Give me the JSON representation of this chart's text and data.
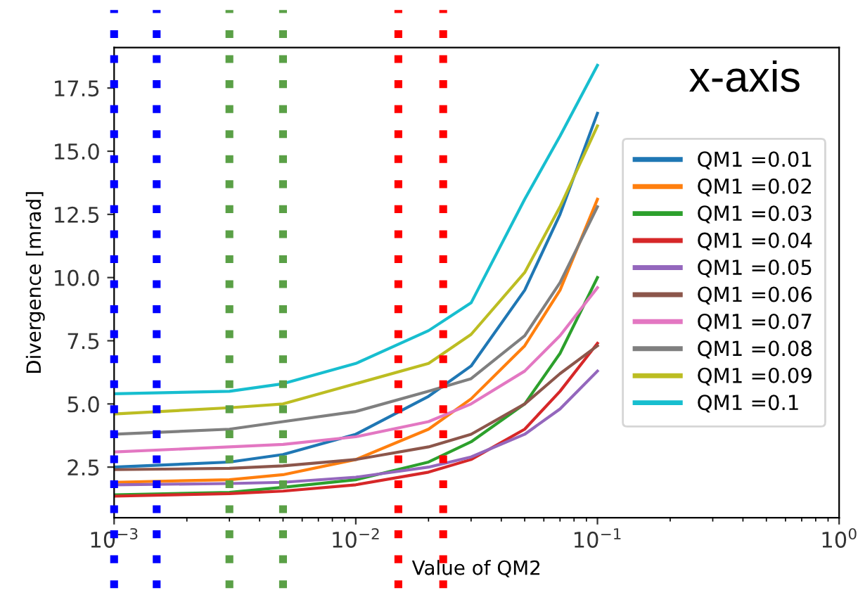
{
  "chart_data": {
    "type": "line",
    "xlabel": "Value of QM2",
    "ylabel": "Divergence [mrad]",
    "annotations": [
      "x-axis"
    ],
    "x": [
      0.001,
      0.003,
      0.005,
      0.01,
      0.02,
      0.03,
      0.05,
      0.07,
      0.1
    ],
    "series": [
      {
        "name": "QM1 =0.01",
        "color": "#1f77b4",
        "values": [
          2.5,
          2.7,
          3.0,
          3.8,
          5.3,
          6.5,
          9.5,
          12.5,
          16.5
        ]
      },
      {
        "name": "QM1 =0.02",
        "color": "#ff7f0e",
        "values": [
          1.9,
          2.0,
          2.2,
          2.8,
          4.0,
          5.2,
          7.3,
          9.5,
          13.1
        ]
      },
      {
        "name": "QM1 =0.03",
        "color": "#2ca02c",
        "values": [
          1.4,
          1.5,
          1.7,
          2.0,
          2.7,
          3.5,
          5.0,
          7.0,
          10.0
        ]
      },
      {
        "name": "QM1 =0.04",
        "color": "#d62728",
        "values": [
          1.35,
          1.45,
          1.55,
          1.8,
          2.3,
          2.8,
          4.0,
          5.5,
          7.4
        ]
      },
      {
        "name": "QM1 =0.05",
        "color": "#9467bd",
        "values": [
          1.8,
          1.85,
          1.9,
          2.1,
          2.5,
          2.9,
          3.8,
          4.8,
          6.3
        ]
      },
      {
        "name": "QM1 =0.06",
        "color": "#8c564b",
        "values": [
          2.4,
          2.45,
          2.55,
          2.8,
          3.3,
          3.8,
          5.0,
          6.2,
          7.3
        ]
      },
      {
        "name": "QM1 =0.07",
        "color": "#e377c2",
        "values": [
          3.1,
          3.3,
          3.4,
          3.7,
          4.3,
          5.0,
          6.3,
          7.7,
          9.6
        ]
      },
      {
        "name": "QM1 =0.08",
        "color": "#7f7f7f",
        "values": [
          3.8,
          4.0,
          4.3,
          4.7,
          5.5,
          6.0,
          7.7,
          9.8,
          12.8
        ]
      },
      {
        "name": "QM1 =0.09",
        "color": "#bcbd22",
        "values": [
          4.6,
          4.85,
          5.0,
          5.8,
          6.6,
          7.75,
          10.2,
          12.8,
          16.0
        ]
      },
      {
        "name": "QM1 =0.1",
        "color": "#17becf",
        "values": [
          5.4,
          5.5,
          5.8,
          6.6,
          7.9,
          9.0,
          13.1,
          15.6,
          18.4
        ]
      }
    ],
    "log": "x",
    "xlim": [
      0.001,
      1
    ],
    "ylim": [
      0.5,
      19.1
    ],
    "xticks": [
      {
        "value": 0.001,
        "label": "10$^{−3}$"
      },
      {
        "value": 0.01,
        "label": "10$^{−2}$"
      },
      {
        "value": 0.1,
        "label": "10$^{−1}$"
      },
      {
        "value": 1,
        "label": "10$^{0}$"
      }
    ],
    "yticks": [
      {
        "value": 2.5,
        "label": "2.5"
      },
      {
        "value": 5,
        "label": "5.0"
      },
      {
        "value": 7.5,
        "label": "7.5"
      },
      {
        "value": 10,
        "label": "10.0"
      },
      {
        "value": 12.5,
        "label": "12.5"
      },
      {
        "value": 15,
        "label": "15.0"
      },
      {
        "value": 17.5,
        "label": "17.5"
      }
    ],
    "ref_lines": [
      {
        "axis": "x",
        "value": 0.001,
        "color": "#0000ff",
        "line_style": "dotted"
      },
      {
        "axis": "x",
        "value": 0.0015,
        "color": "#0000ff",
        "line_style": "dotted"
      },
      {
        "axis": "x",
        "value": 0.003,
        "color": "#5aa046",
        "line_style": "dotted"
      },
      {
        "axis": "x",
        "value": 0.005,
        "color": "#5aa046",
        "line_style": "dotted"
      },
      {
        "axis": "x",
        "value": 0.015,
        "color": "#ff0000",
        "line_style": "dotted"
      },
      {
        "axis": "x",
        "value": 0.023,
        "color": "#ff0000",
        "line_style": "dotted"
      }
    ],
    "grid": false,
    "legend": "right",
    "marker": "none",
    "line_style": "solid"
  }
}
